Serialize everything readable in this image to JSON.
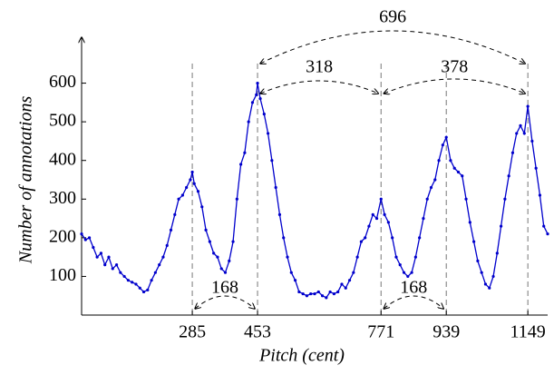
{
  "chart_data": {
    "type": "line",
    "xlabel": "Pitch (cent)",
    "ylabel": "Number of annotations",
    "xlim": [
      0,
      1200
    ],
    "ylim": [
      0,
      700
    ],
    "xticks": [
      285,
      453,
      771,
      939,
      1149
    ],
    "yticks": [
      100,
      200,
      300,
      400,
      500,
      600
    ],
    "color": "#0000cc",
    "x": [
      0,
      10,
      20,
      30,
      40,
      50,
      60,
      70,
      80,
      90,
      100,
      110,
      120,
      130,
      140,
      150,
      160,
      170,
      180,
      190,
      200,
      210,
      220,
      230,
      240,
      250,
      260,
      270,
      280,
      285,
      290,
      300,
      310,
      320,
      330,
      340,
      350,
      360,
      370,
      380,
      390,
      400,
      410,
      420,
      430,
      440,
      450,
      453,
      460,
      470,
      480,
      490,
      500,
      510,
      520,
      530,
      540,
      550,
      560,
      570,
      580,
      590,
      600,
      610,
      620,
      630,
      640,
      650,
      660,
      670,
      680,
      690,
      700,
      710,
      720,
      730,
      740,
      750,
      760,
      771,
      780,
      790,
      800,
      810,
      820,
      830,
      840,
      850,
      860,
      870,
      880,
      890,
      900,
      910,
      920,
      930,
      939,
      950,
      960,
      970,
      980,
      990,
      1000,
      1010,
      1020,
      1030,
      1040,
      1050,
      1060,
      1070,
      1080,
      1090,
      1100,
      1110,
      1120,
      1130,
      1140,
      1149,
      1160,
      1170,
      1180,
      1190,
      1200
    ],
    "values": [
      210,
      195,
      200,
      175,
      150,
      160,
      130,
      150,
      120,
      130,
      110,
      100,
      90,
      85,
      80,
      70,
      60,
      65,
      90,
      110,
      130,
      150,
      180,
      220,
      260,
      300,
      310,
      330,
      350,
      370,
      340,
      320,
      280,
      220,
      190,
      160,
      150,
      120,
      110,
      140,
      190,
      300,
      390,
      420,
      500,
      550,
      570,
      600,
      560,
      520,
      470,
      400,
      330,
      260,
      200,
      150,
      110,
      90,
      60,
      55,
      50,
      55,
      55,
      60,
      50,
      45,
      60,
      55,
      60,
      80,
      70,
      90,
      110,
      150,
      190,
      200,
      230,
      260,
      250,
      300,
      260,
      240,
      200,
      150,
      130,
      110,
      100,
      110,
      150,
      200,
      250,
      300,
      330,
      350,
      400,
      440,
      460,
      400,
      380,
      370,
      360,
      300,
      240,
      190,
      140,
      110,
      80,
      70,
      100,
      160,
      230,
      300,
      360,
      420,
      470,
      490,
      470,
      540,
      450,
      380,
      310,
      230,
      210
    ],
    "annotations": [
      {
        "from": 285,
        "to": 453,
        "label": "168"
      },
      {
        "from": 453,
        "to": 771,
        "label": "318"
      },
      {
        "from": 771,
        "to": 1149,
        "label": "378"
      },
      {
        "from": 453,
        "to": 1149,
        "label": "696"
      },
      {
        "from": 771,
        "to": 939,
        "label": "168"
      }
    ]
  }
}
